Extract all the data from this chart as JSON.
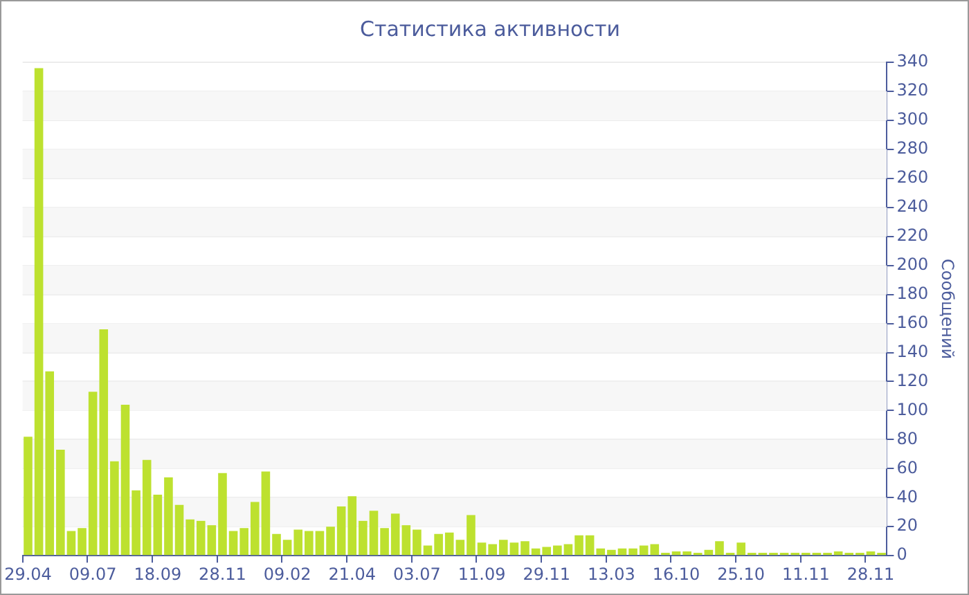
{
  "chart_data": {
    "type": "bar",
    "title": "Статистика активности",
    "ylabel": "Сообщений",
    "categories": [
      "29.04",
      null,
      null,
      null,
      null,
      null,
      "09.07",
      null,
      null,
      null,
      null,
      null,
      "18.09",
      null,
      null,
      null,
      null,
      null,
      "28.11",
      null,
      null,
      null,
      null,
      null,
      "09.02",
      null,
      null,
      null,
      null,
      null,
      "21.04",
      null,
      null,
      null,
      null,
      null,
      "03.07",
      null,
      null,
      null,
      null,
      null,
      "11.09",
      null,
      null,
      null,
      null,
      null,
      "29.11",
      null,
      null,
      null,
      null,
      null,
      "13.03",
      null,
      null,
      null,
      null,
      null,
      "16.10",
      null,
      null,
      null,
      null,
      null,
      "25.10",
      null,
      null,
      null,
      null,
      null,
      "11.11",
      null,
      null,
      null,
      null,
      null,
      "28.11",
      null
    ],
    "values": [
      82,
      336,
      127,
      73,
      17,
      19,
      113,
      156,
      65,
      104,
      45,
      66,
      42,
      54,
      35,
      25,
      24,
      21,
      57,
      17,
      19,
      37,
      58,
      15,
      11,
      18,
      17,
      17,
      20,
      34,
      41,
      24,
      31,
      19,
      29,
      21,
      18,
      7,
      15,
      16,
      11,
      28,
      9,
      8,
      11,
      9,
      10,
      5,
      6,
      7,
      8,
      14,
      14,
      5,
      4,
      5,
      5,
      7,
      8,
      2,
      3,
      3,
      2,
      4,
      10,
      2,
      9,
      2,
      2,
      2,
      2,
      2,
      2,
      2,
      2,
      3,
      2,
      2,
      3,
      2
    ],
    "color": "#bde12f",
    "ylim": [
      0,
      340
    ],
    "yticks": [
      0,
      20,
      40,
      60,
      80,
      100,
      120,
      140,
      160,
      180,
      200,
      220,
      240,
      260,
      280,
      300,
      320,
      340
    ],
    "grid": "y",
    "legend": false
  }
}
